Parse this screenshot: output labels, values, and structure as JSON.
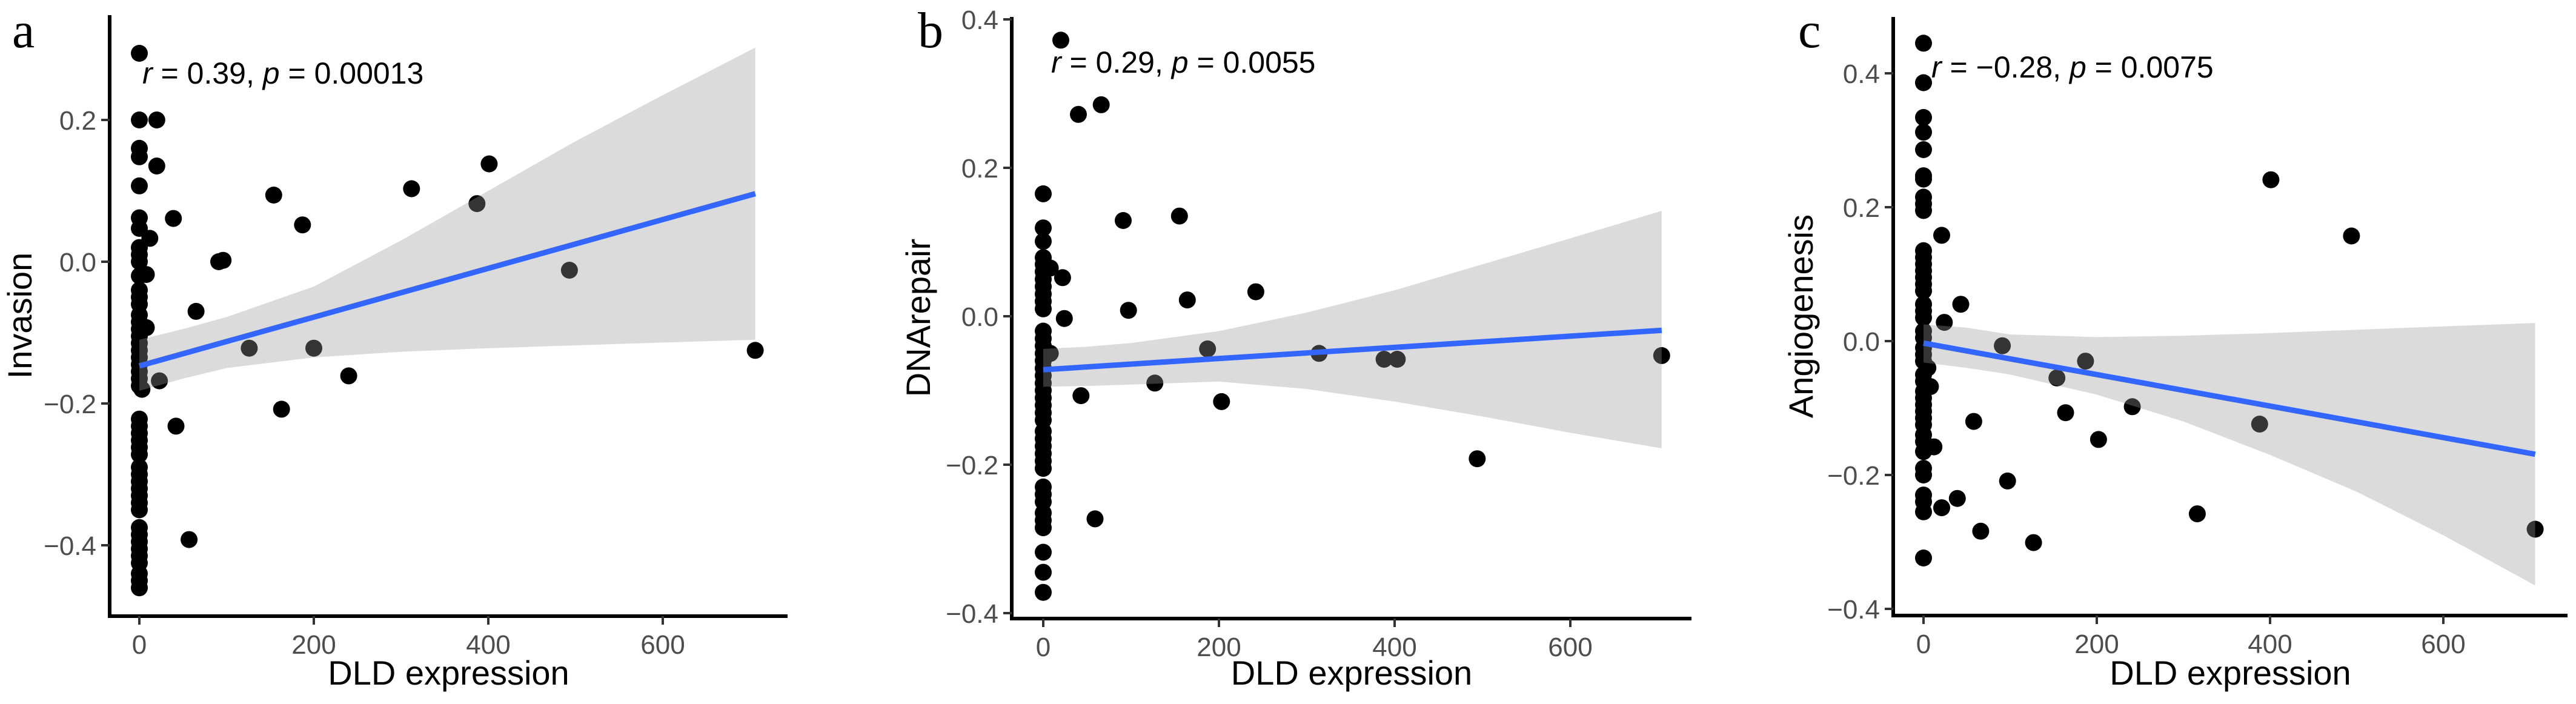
{
  "chart_data": [
    {
      "type": "scatter",
      "panel_label": "a",
      "xlabel": "DLD expression",
      "ylabel": "Invasion",
      "annotation": {
        "r_label": "r",
        "r_value": "0.39",
        "p_label": "p",
        "p_value": "0.00013"
      },
      "xlim": [
        -20,
        740
      ],
      "ylim": [
        -0.5,
        0.35
      ],
      "x_ticks": [
        0,
        200,
        400,
        600
      ],
      "x_tick_labels": [
        "0",
        "200",
        "400",
        "600"
      ],
      "y_ticks": [
        -0.4,
        -0.2,
        0.0,
        0.2
      ],
      "y_tick_labels": [
        "−0.4",
        "−0.2",
        "0.0",
        "0.2"
      ],
      "grid": false,
      "fit": {
        "x": [
          0,
          706
        ],
        "y": [
          -0.147,
          0.096
        ]
      },
      "ci_band": {
        "x": [
          0,
          50,
          100,
          200,
          300,
          400,
          500,
          600,
          706
        ],
        "upper": [
          -0.11,
          -0.095,
          -0.078,
          -0.035,
          0.03,
          0.1,
          0.17,
          0.235,
          0.302
        ],
        "lower": [
          -0.182,
          -0.165,
          -0.15,
          -0.135,
          -0.127,
          -0.122,
          -0.118,
          -0.114,
          -0.11
        ]
      },
      "points": [
        [
          0,
          0.294
        ],
        [
          0,
          0.2
        ],
        [
          20,
          0.2
        ],
        [
          0,
          0.16
        ],
        [
          0,
          0.148
        ],
        [
          20,
          0.135
        ],
        [
          0,
          0.107
        ],
        [
          154,
          0.094
        ],
        [
          312,
          0.103
        ],
        [
          401,
          0.138
        ],
        [
          387,
          0.082
        ],
        [
          39,
          0.061
        ],
        [
          187,
          0.052
        ],
        [
          0,
          0.062
        ],
        [
          0,
          0.047
        ],
        [
          12,
          0.033
        ],
        [
          91,
          0.0
        ],
        [
          96,
          0.002
        ],
        [
          493,
          -0.012
        ],
        [
          0,
          0.02
        ],
        [
          0,
          0.01
        ],
        [
          0,
          0.0
        ],
        [
          0,
          -0.02
        ],
        [
          8,
          -0.018
        ],
        [
          0,
          -0.04
        ],
        [
          0,
          -0.05
        ],
        [
          0,
          -0.06
        ],
        [
          0,
          -0.075
        ],
        [
          0,
          -0.085
        ],
        [
          0,
          -0.095
        ],
        [
          8,
          -0.093
        ],
        [
          0,
          -0.105
        ],
        [
          65,
          -0.07
        ],
        [
          126,
          -0.122
        ],
        [
          200,
          -0.122
        ],
        [
          706,
          -0.125
        ],
        [
          23,
          -0.168
        ],
        [
          240,
          -0.161
        ],
        [
          163,
          -0.208
        ],
        [
          42,
          -0.232
        ],
        [
          57,
          -0.392
        ],
        [
          0,
          -0.115
        ],
        [
          0,
          -0.125
        ],
        [
          0,
          -0.135
        ],
        [
          0,
          -0.145
        ],
        [
          0,
          -0.155
        ],
        [
          0,
          -0.165
        ],
        [
          0,
          -0.175
        ],
        [
          3,
          -0.18
        ],
        [
          0,
          -0.222
        ],
        [
          0,
          -0.232
        ],
        [
          0,
          -0.242
        ],
        [
          0,
          -0.252
        ],
        [
          0,
          -0.262
        ],
        [
          0,
          -0.272
        ],
        [
          0,
          -0.29
        ],
        [
          0,
          -0.3
        ],
        [
          0,
          -0.31
        ],
        [
          0,
          -0.32
        ],
        [
          0,
          -0.33
        ],
        [
          0,
          -0.34
        ],
        [
          0,
          -0.35
        ],
        [
          0,
          -0.375
        ],
        [
          0,
          -0.385
        ],
        [
          0,
          -0.395
        ],
        [
          0,
          -0.405
        ],
        [
          0,
          -0.415
        ],
        [
          0,
          -0.425
        ],
        [
          0,
          -0.44
        ],
        [
          0,
          -0.45
        ],
        [
          0,
          -0.46
        ]
      ]
    },
    {
      "type": "scatter",
      "panel_label": "b",
      "xlabel": "DLD expression",
      "ylabel": "DNArepair",
      "annotation": {
        "r_label": "r",
        "r_value": "0.29",
        "p_label": "p",
        "p_value": "0.0055"
      },
      "xlim": [
        -35,
        740
      ],
      "ylim": [
        -0.41,
        0.4
      ],
      "x_ticks": [
        0,
        200,
        400,
        600
      ],
      "x_tick_labels": [
        "0",
        "200",
        "400",
        "600"
      ],
      "y_ticks": [
        -0.4,
        -0.2,
        0.0,
        0.2,
        0.4
      ],
      "y_tick_labels": [
        "−0.4",
        "−0.2",
        "0.0",
        "0.2",
        "0.4"
      ],
      "grid": false,
      "fit": {
        "x": [
          0,
          704
        ],
        "y": [
          -0.072,
          -0.019
        ]
      },
      "ci_band": {
        "x": [
          0,
          50,
          100,
          200,
          300,
          400,
          500,
          600,
          704
        ],
        "upper": [
          -0.044,
          -0.041,
          -0.036,
          -0.02,
          0.005,
          0.035,
          0.07,
          0.105,
          0.142
        ],
        "lower": [
          -0.095,
          -0.094,
          -0.092,
          -0.088,
          -0.098,
          -0.115,
          -0.135,
          -0.157,
          -0.178
        ]
      },
      "points": [
        [
          20,
          0.372
        ],
        [
          40,
          0.272
        ],
        [
          66,
          0.285
        ],
        [
          0,
          0.165
        ],
        [
          91,
          0.129
        ],
        [
          155,
          0.135
        ],
        [
          0,
          0.119
        ],
        [
          0,
          0.101
        ],
        [
          0,
          0.079
        ],
        [
          0,
          0.07
        ],
        [
          0,
          0.06
        ],
        [
          0,
          0.05
        ],
        [
          8,
          0.065
        ],
        [
          22,
          0.052
        ],
        [
          0,
          0.04
        ],
        [
          0,
          0.03
        ],
        [
          0,
          0.02
        ],
        [
          0,
          0.01
        ],
        [
          24,
          -0.003
        ],
        [
          97,
          0.008
        ],
        [
          164,
          0.022
        ],
        [
          242,
          0.033
        ],
        [
          187,
          -0.044
        ],
        [
          314,
          -0.05
        ],
        [
          388,
          -0.058
        ],
        [
          403,
          -0.058
        ],
        [
          704,
          -0.053
        ],
        [
          127,
          -0.09
        ],
        [
          43,
          -0.107
        ],
        [
          203,
          -0.115
        ],
        [
          494,
          -0.192
        ],
        [
          59,
          -0.273
        ],
        [
          0,
          -0.02
        ],
        [
          0,
          -0.03
        ],
        [
          0,
          -0.04
        ],
        [
          0,
          -0.05
        ],
        [
          8,
          -0.05
        ],
        [
          0,
          -0.06
        ],
        [
          0,
          -0.07
        ],
        [
          0,
          -0.08
        ],
        [
          0,
          -0.09
        ],
        [
          0,
          -0.1
        ],
        [
          0,
          -0.11
        ],
        [
          0,
          -0.12
        ],
        [
          0,
          -0.13
        ],
        [
          0,
          -0.14
        ],
        [
          0,
          -0.155
        ],
        [
          0,
          -0.165
        ],
        [
          0,
          -0.175
        ],
        [
          0,
          -0.185
        ],
        [
          0,
          -0.195
        ],
        [
          0,
          -0.205
        ],
        [
          0,
          -0.23
        ],
        [
          0,
          -0.24
        ],
        [
          0,
          -0.25
        ],
        [
          0,
          -0.265
        ],
        [
          0,
          -0.275
        ],
        [
          0,
          -0.285
        ],
        [
          0,
          -0.318
        ],
        [
          0,
          -0.345
        ],
        [
          0,
          -0.372
        ]
      ]
    },
    {
      "type": "scatter",
      "panel_label": "c",
      "xlabel": "DLD expression",
      "ylabel": "Angiogenesis",
      "annotation": {
        "r_label": "r",
        "r_value": "−0.28",
        "p_label": "p",
        "p_value": "0.0075"
      },
      "xlim": [
        -35,
        740
      ],
      "ylim": [
        -0.41,
        0.48
      ],
      "x_ticks": [
        0,
        200,
        400,
        600
      ],
      "x_tick_labels": [
        "0",
        "200",
        "400",
        "600"
      ],
      "y_ticks": [
        -0.4,
        -0.2,
        0.0,
        0.2,
        0.4
      ],
      "y_tick_labels": [
        "−0.4",
        "−0.2",
        "0.0",
        "0.2",
        "0.4"
      ],
      "grid": false,
      "fit": {
        "x": [
          0,
          706
        ],
        "y": [
          -0.003,
          -0.169
        ]
      },
      "ci_band": {
        "x": [
          0,
          50,
          100,
          200,
          300,
          400,
          500,
          600,
          706
        ],
        "upper": [
          0.025,
          0.02,
          0.01,
          0.006,
          0.008,
          0.012,
          0.017,
          0.022,
          0.027
        ],
        "lower": [
          -0.032,
          -0.04,
          -0.05,
          -0.08,
          -0.12,
          -0.17,
          -0.225,
          -0.29,
          -0.365
        ]
      },
      "points": [
        [
          0,
          0.445
        ],
        [
          0,
          0.386
        ],
        [
          0,
          0.334
        ],
        [
          0,
          0.312
        ],
        [
          0,
          0.286
        ],
        [
          0,
          0.247
        ],
        [
          0,
          0.242
        ],
        [
          0,
          0.215
        ],
        [
          0,
          0.205
        ],
        [
          0,
          0.195
        ],
        [
          401,
          0.241
        ],
        [
          494,
          0.157
        ],
        [
          21,
          0.158
        ],
        [
          0,
          0.135
        ],
        [
          0,
          0.125
        ],
        [
          0,
          0.115
        ],
        [
          0,
          0.105
        ],
        [
          0,
          0.095
        ],
        [
          0,
          0.085
        ],
        [
          0,
          0.075
        ],
        [
          43,
          0.055
        ],
        [
          0,
          0.055
        ],
        [
          0,
          0.045
        ],
        [
          0,
          0.035
        ],
        [
          24,
          0.028
        ],
        [
          0,
          0.015
        ],
        [
          0,
          0.005
        ],
        [
          91,
          -0.007
        ],
        [
          187,
          -0.03
        ],
        [
          154,
          -0.055
        ],
        [
          164,
          -0.107
        ],
        [
          241,
          -0.098
        ],
        [
          58,
          -0.12
        ],
        [
          388,
          -0.124
        ],
        [
          202,
          -0.147
        ],
        [
          12,
          -0.158
        ],
        [
          97,
          -0.209
        ],
        [
          39,
          -0.235
        ],
        [
          21,
          -0.249
        ],
        [
          316,
          -0.258
        ],
        [
          66,
          -0.284
        ],
        [
          127,
          -0.301
        ],
        [
          706,
          -0.281
        ],
        [
          0,
          -0.324
        ],
        [
          0,
          -0.01
        ],
        [
          0,
          -0.02
        ],
        [
          0,
          -0.03
        ],
        [
          5,
          -0.04
        ],
        [
          0,
          -0.05
        ],
        [
          0,
          -0.06
        ],
        [
          8,
          -0.068
        ],
        [
          0,
          -0.075
        ],
        [
          0,
          -0.085
        ],
        [
          0,
          -0.095
        ],
        [
          0,
          -0.105
        ],
        [
          0,
          -0.115
        ],
        [
          0,
          -0.125
        ],
        [
          0,
          -0.14
        ],
        [
          0,
          -0.15
        ],
        [
          0,
          -0.165
        ],
        [
          0,
          -0.19
        ],
        [
          0,
          -0.2
        ],
        [
          0,
          -0.23
        ],
        [
          0,
          -0.24
        ],
        [
          0,
          -0.255
        ]
      ]
    }
  ],
  "colors": {
    "fit_line": "#3366FF",
    "ci_band": "#D9D9D9",
    "points": "#000000",
    "axis": "#000000",
    "tick_label": "#4D4D4D"
  }
}
